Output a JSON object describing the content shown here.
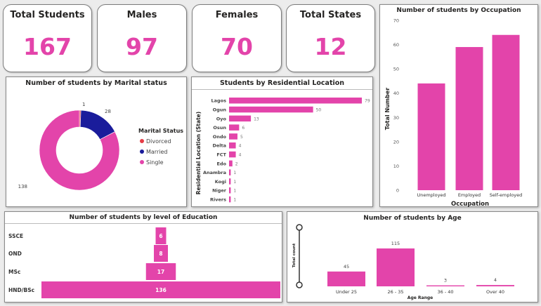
{
  "kpis": [
    {
      "label": "Total Students",
      "value": "167"
    },
    {
      "label": "Males",
      "value": "97"
    },
    {
      "label": "Females",
      "value": "70"
    },
    {
      "label": "Total States",
      "value": "12"
    }
  ],
  "colors": {
    "pink": "#e344aa",
    "navy": "#1a1c9b",
    "red": "#e63c46"
  },
  "chart_data": [
    {
      "type": "pie",
      "title": "Number of students by Marital status",
      "legend_title": "Marital Status",
      "legend_position": "right",
      "categories": [
        "Divorced",
        "Married",
        "Single"
      ],
      "values": [
        1,
        28,
        138
      ],
      "colors": [
        "#e63c46",
        "#1a1c9b",
        "#e344aa"
      ]
    },
    {
      "type": "bar",
      "orientation": "horizontal",
      "title": "Students by Residential Location",
      "ylabel": "Residential Location (State)",
      "categories": [
        "Lagos",
        "Ogun",
        "Oyo",
        "Osun",
        "Ondo",
        "Delta",
        "FCT",
        "Edo",
        "Anambra",
        "Kogi",
        "Niger",
        "Rivers"
      ],
      "values": [
        79,
        50,
        13,
        6,
        5,
        4,
        4,
        2,
        1,
        1,
        1,
        1
      ]
    },
    {
      "type": "bar",
      "title": "Number of students by Occupation",
      "xlabel": "Occupation",
      "ylabel": "Total Number",
      "categories": [
        "Unemployed",
        "Employed",
        "Self-employed"
      ],
      "values": [
        44,
        59,
        64
      ],
      "ylim": [
        0,
        70
      ],
      "yticks": [
        0,
        10,
        20,
        30,
        40,
        50,
        60,
        70
      ],
      "grid": false
    },
    {
      "type": "bar",
      "orientation": "horizontal",
      "title": "Number of students by level of Education",
      "categories": [
        "SSCE",
        "OND",
        "MSc",
        "HND/BSc"
      ],
      "values": [
        6,
        8,
        17,
        136
      ]
    },
    {
      "type": "bar",
      "title": "Number of students by Age",
      "xlabel": "Age Range",
      "ylabel": "Total count",
      "categories": [
        "Under 25",
        "26 - 35",
        "36 - 40",
        "Over 40"
      ],
      "values": [
        45,
        115,
        3,
        4
      ]
    }
  ]
}
